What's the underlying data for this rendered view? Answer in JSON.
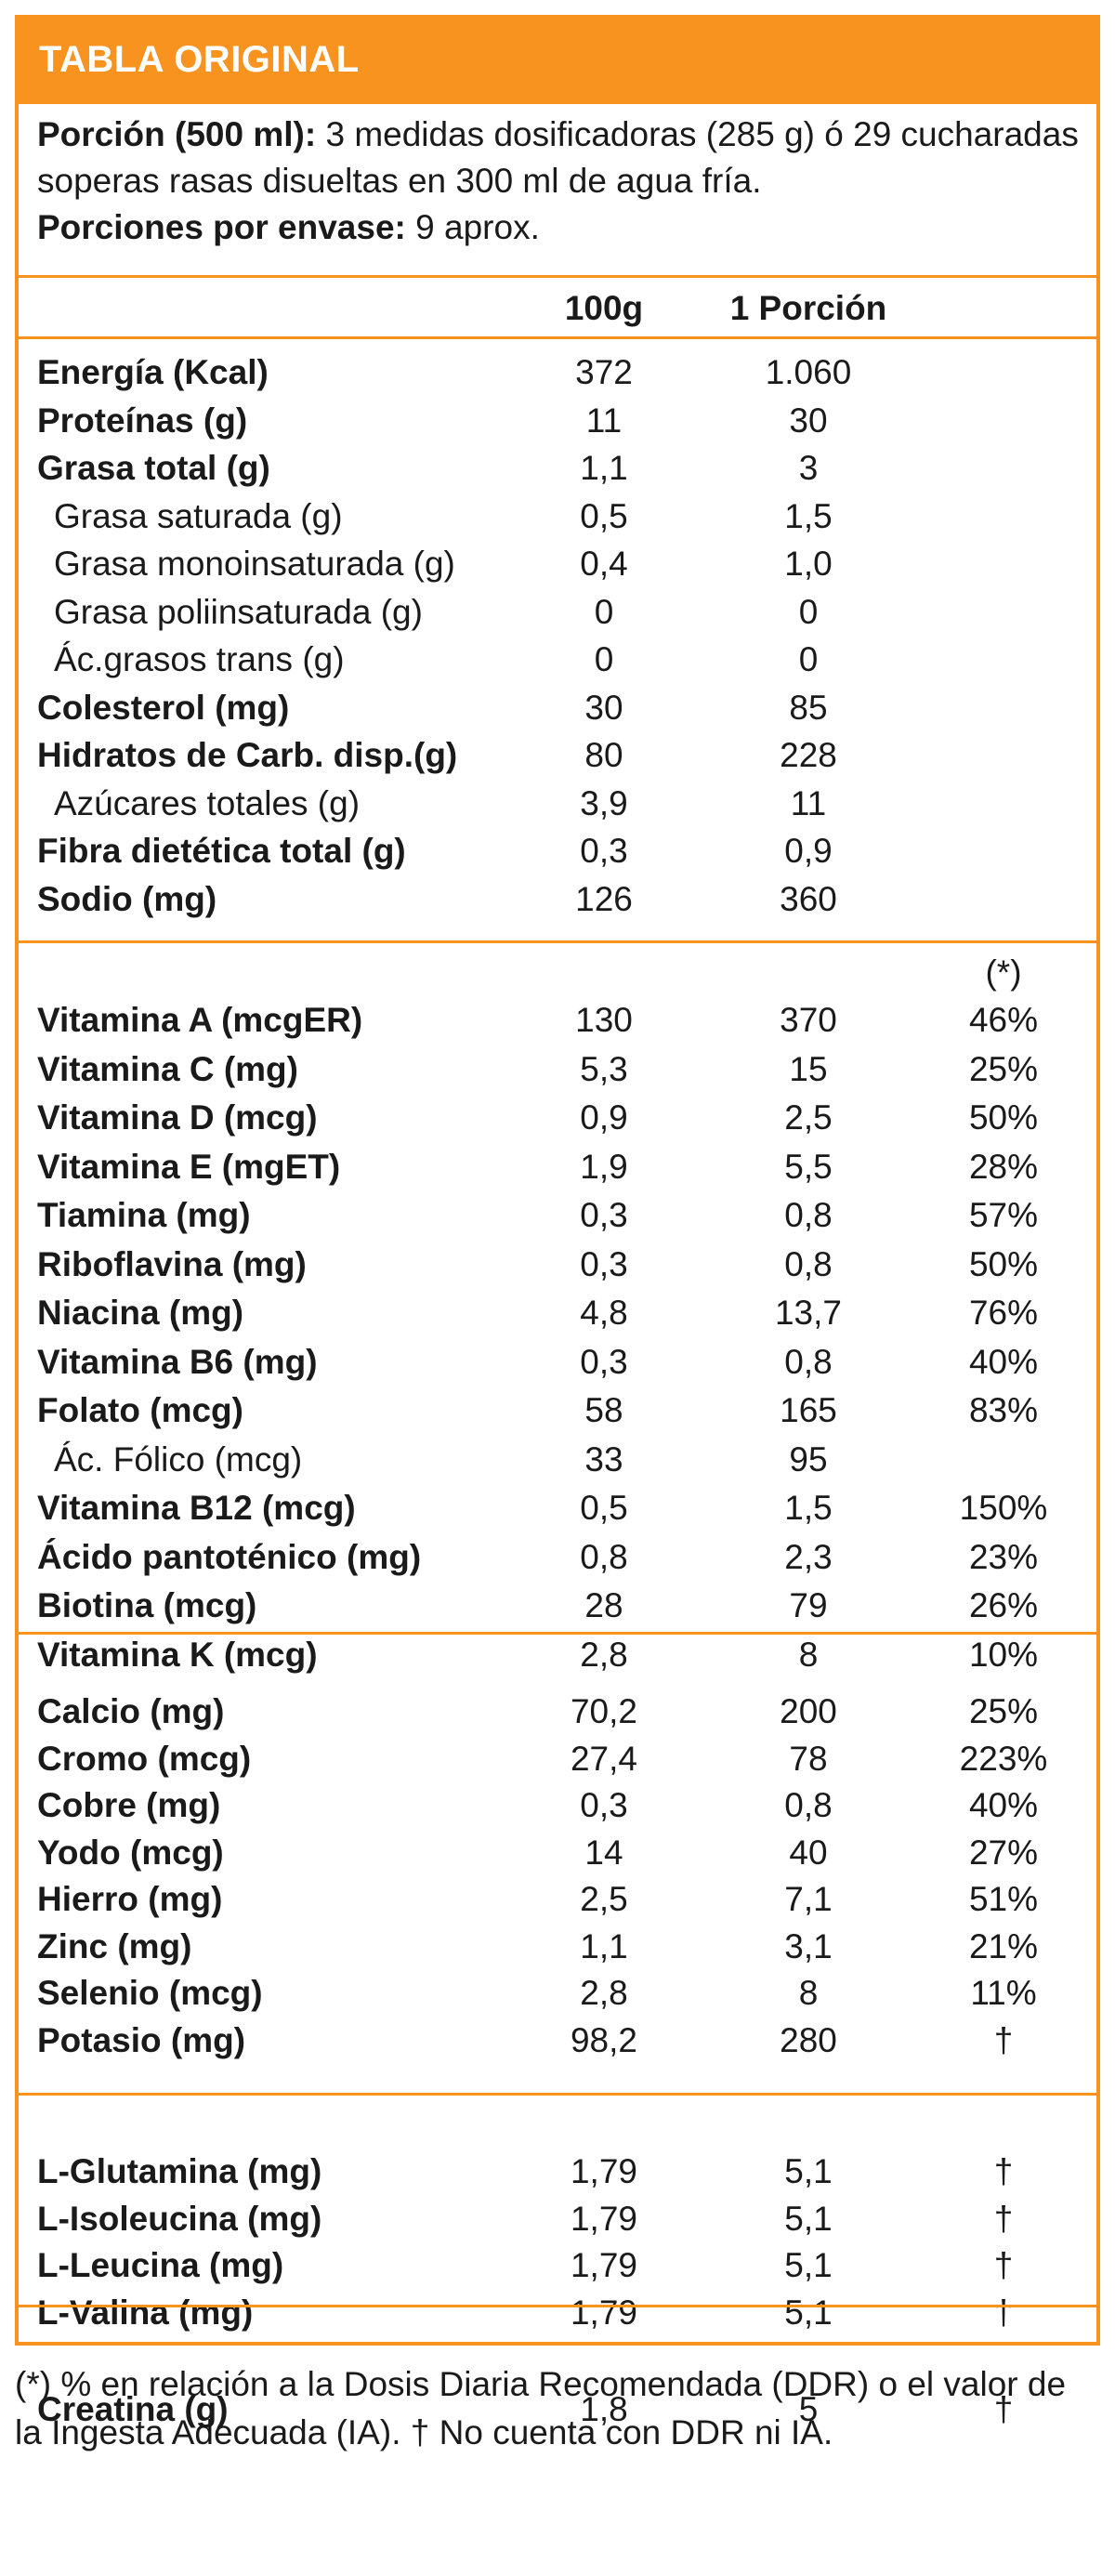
{
  "title": "TABLA ORIGINAL",
  "serving": {
    "portion_label": "Porción (500 ml):",
    "portion_text": " 3 medidas dosificadoras (285 g) ó 29 cucharadas soperas rasas disueltas en 300 ml de agua fría.",
    "per_container_label": "Porciones por envase:",
    "per_container_text": " 9 aprox."
  },
  "columns": {
    "per100": "100g",
    "per_portion": "1 Porción",
    "percent_marker": "(*)"
  },
  "sections": [
    {
      "rows": [
        {
          "name": "Energía (Kcal)",
          "style": "bold",
          "v100": "372",
          "vpor": "1.060",
          "vpct": ""
        },
        {
          "name": "Proteínas (g)",
          "style": "bold",
          "v100": "11",
          "vpor": "30",
          "vpct": ""
        },
        {
          "name": "Grasa total (g)",
          "style": "bold",
          "v100": "1,1",
          "vpor": "3",
          "vpct": ""
        },
        {
          "name": "Grasa saturada (g)",
          "style": "sub",
          "v100": "0,5",
          "vpor": "1,5",
          "vpct": ""
        },
        {
          "name": "Grasa monoinsaturada (g)",
          "style": "sub",
          "v100": "0,4",
          "vpor": "1,0",
          "vpct": ""
        },
        {
          "name": "Grasa poliinsaturada (g)",
          "style": "sub",
          "v100": "0",
          "vpor": "0",
          "vpct": ""
        },
        {
          "name": "Ác.grasos trans (g)",
          "style": "sub",
          "v100": "0",
          "vpor": "0",
          "vpct": ""
        },
        {
          "name": "Colesterol (mg)",
          "style": "bold",
          "v100": "30",
          "vpor": "85",
          "vpct": ""
        },
        {
          "name": "Hidratos de Carb. disp.(g)",
          "style": "bold",
          "v100": "80",
          "vpor": "228",
          "vpct": ""
        },
        {
          "name": "Azúcares totales (g)",
          "style": "sub",
          "v100": "3,9",
          "vpor": "11",
          "vpct": ""
        },
        {
          "name": "Fibra dietética total (g)",
          "style": "bold",
          "v100": "0,3",
          "vpor": "0,9",
          "vpct": ""
        },
        {
          "name": "Sodio (mg)",
          "style": "bold",
          "v100": "126",
          "vpor": "360",
          "vpct": ""
        }
      ]
    },
    {
      "rows": [
        {
          "name": "Vitamina A (mcgER)",
          "style": "bold",
          "v100": "130",
          "vpor": "370",
          "vpct": "46%"
        },
        {
          "name": "Vitamina C (mg)",
          "style": "bold",
          "v100": "5,3",
          "vpor": "15",
          "vpct": "25%"
        },
        {
          "name": "Vitamina D (mcg)",
          "style": "bold",
          "v100": "0,9",
          "vpor": "2,5",
          "vpct": "50%"
        },
        {
          "name": "Vitamina E (mgET)",
          "style": "bold",
          "v100": "1,9",
          "vpor": "5,5",
          "vpct": "28%"
        },
        {
          "name": "Tiamina (mg)",
          "style": "bold",
          "v100": "0,3",
          "vpor": "0,8",
          "vpct": "57%"
        },
        {
          "name": "Riboflavina (mg)",
          "style": "bold",
          "v100": "0,3",
          "vpor": "0,8",
          "vpct": "50%"
        },
        {
          "name": "Niacina (mg)",
          "style": "bold",
          "v100": "4,8",
          "vpor": "13,7",
          "vpct": "76%"
        },
        {
          "name": "Vitamina B6 (mg)",
          "style": "bold",
          "v100": "0,3",
          "vpor": "0,8",
          "vpct": "40%"
        },
        {
          "name": "Folato (mcg)",
          "style": "bold",
          "v100": "58",
          "vpor": "165",
          "vpct": "83%"
        },
        {
          "name": "Ác. Fólico (mcg)",
          "style": "sub",
          "v100": "33",
          "vpor": "95",
          "vpct": ""
        },
        {
          "name": "Vitamina B12 (mcg)",
          "style": "bold",
          "v100": "0,5",
          "vpor": "1,5",
          "vpct": "150%"
        },
        {
          "name": "Ácido pantoténico (mg)",
          "style": "bold",
          "v100": "0,8",
          "vpor": "2,3",
          "vpct": "23%"
        },
        {
          "name": "Biotina (mcg)",
          "style": "bold",
          "v100": "28",
          "vpor": "79",
          "vpct": "26%"
        },
        {
          "name": "Vitamina K (mcg)",
          "style": "bold",
          "v100": "2,8",
          "vpor": "8",
          "vpct": "10%"
        }
      ]
    },
    {
      "rows": [
        {
          "name": "Calcio (mg)",
          "style": "bold",
          "v100": "70,2",
          "vpor": "200",
          "vpct": "25%"
        },
        {
          "name": "Cromo (mcg)",
          "style": "bold",
          "v100": "27,4",
          "vpor": "78",
          "vpct": "223%"
        },
        {
          "name": "Cobre (mg)",
          "style": "bold",
          "v100": "0,3",
          "vpor": "0,8",
          "vpct": "40%"
        },
        {
          "name": "Yodo (mcg)",
          "style": "bold",
          "v100": "14",
          "vpor": "40",
          "vpct": "27%"
        },
        {
          "name": "Hierro (mg)",
          "style": "bold",
          "v100": "2,5",
          "vpor": "7,1",
          "vpct": "51%"
        },
        {
          "name": "Zinc (mg)",
          "style": "bold",
          "v100": "1,1",
          "vpor": "3,1",
          "vpct": "21%"
        },
        {
          "name": "Selenio (mcg)",
          "style": "bold",
          "v100": "2,8",
          "vpor": "8",
          "vpct": "11%"
        },
        {
          "name": "Potasio (mg)",
          "style": "bold",
          "v100": "98,2",
          "vpor": "280",
          "vpct": "†"
        }
      ]
    },
    {
      "rows": [
        {
          "name": "L-Glutamina (mg)",
          "style": "bold",
          "v100": "1,79",
          "vpor": "5,1",
          "vpct": "†"
        },
        {
          "name": "L-Isoleucina (mg)",
          "style": "bold",
          "v100": "1,79",
          "vpor": "5,1",
          "vpct": "†"
        },
        {
          "name": "L-Leucina (mg)",
          "style": "bold",
          "v100": "1,79",
          "vpor": "5,1",
          "vpct": "†"
        },
        {
          "name": "L-Valina (mg)",
          "style": "bold",
          "v100": "1,79",
          "vpor": "5,1",
          "vpct": "†"
        }
      ]
    },
    {
      "rows": [
        {
          "name": "Creatina (g)",
          "style": "bold",
          "v100": "1,8",
          "vpor": "5",
          "vpct": "†"
        }
      ]
    }
  ],
  "footnote": "(*) % en relación a la Dosis Diaria Recomendada (DDR) o el valor de la Ingesta Adecuada (IA). † No cuenta con DDR ni IA.",
  "colors": {
    "accent": "#f7931e",
    "text": "#1a1a1a"
  }
}
